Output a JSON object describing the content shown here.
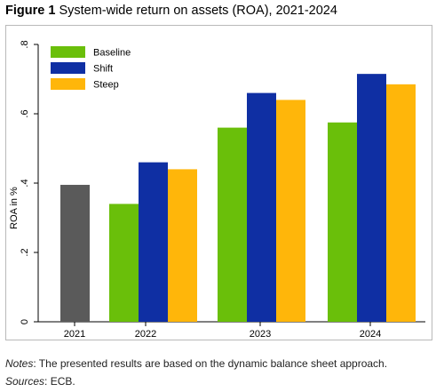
{
  "figure": {
    "label": "Figure 1",
    "title": "System-wide return on assets (ROA), 2021-2024"
  },
  "notes": {
    "notes_label": "Notes",
    "notes_text": ": The presented results are based on the dynamic balance sheet approach.",
    "sources_label": "Sources",
    "sources_text": ": ECB."
  },
  "chart_data": {
    "type": "bar",
    "title": "",
    "xlabel": "",
    "ylabel": "ROA in %",
    "ylim": [
      0,
      0.8
    ],
    "yticks": [
      0,
      0.2,
      0.4,
      0.6,
      0.8
    ],
    "ytick_labels": [
      "0",
      ".2",
      ".4",
      ".6",
      ".8"
    ],
    "grid": false,
    "legend_position": "top-left",
    "categories": [
      "2021",
      "2022",
      "2023",
      "2024"
    ],
    "historical": {
      "category": "2021",
      "value": 0.395,
      "color": "#5a5a5a"
    },
    "series": [
      {
        "name": "Baseline",
        "color": "#6abf0a",
        "values": [
          null,
          0.34,
          0.56,
          0.575
        ]
      },
      {
        "name": "Shift",
        "color": "#0f2fa3",
        "values": [
          null,
          0.46,
          0.66,
          0.715
        ]
      },
      {
        "name": "Steep",
        "color": "#ffb60a",
        "values": [
          null,
          0.44,
          0.64,
          0.685
        ]
      }
    ]
  }
}
